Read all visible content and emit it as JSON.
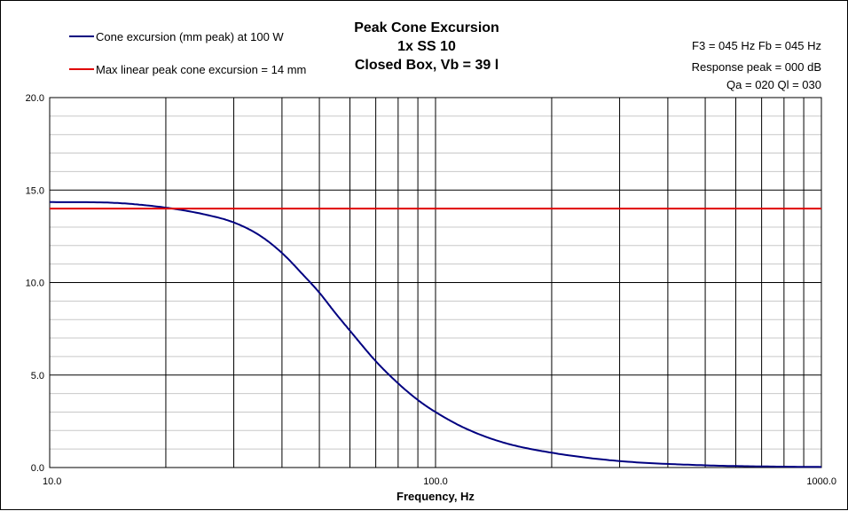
{
  "chart_data": {
    "type": "line",
    "title_lines": [
      "Peak Cone Excursion",
      "1x SS 10",
      "Closed Box, Vb = 39 l"
    ],
    "info_lines": [
      "F3 = 045 Hz  Fb = 045 Hz",
      "Response peak = 000 dB",
      "Qa = 020  Ql = 030"
    ],
    "xlabel": "Frequency, Hz",
    "ylabel": "",
    "x_scale": "log",
    "xlim": [
      10,
      1000
    ],
    "ylim": [
      0,
      20
    ],
    "x_tick_labels": [
      "10.0",
      "100.0",
      "1000.0"
    ],
    "y_tick_labels": [
      "0.0",
      "5.0",
      "10.0",
      "15.0",
      "20.0"
    ],
    "grid": true,
    "legend_position": "top-left",
    "series": [
      {
        "name": "Cone excursion (mm peak) at 100 W",
        "color": "#000080",
        "x": [
          10,
          15,
          20,
          25,
          30,
          35,
          40,
          45,
          50,
          55,
          60,
          70,
          80,
          90,
          100,
          120,
          150,
          200,
          300,
          500,
          700,
          1000
        ],
        "y": [
          14.35,
          14.3,
          14.05,
          13.7,
          13.25,
          12.55,
          11.6,
          10.5,
          9.45,
          8.35,
          7.4,
          5.75,
          4.55,
          3.65,
          3.0,
          2.1,
          1.35,
          0.8,
          0.35,
          0.12,
          0.06,
          0.03
        ]
      },
      {
        "name": "Max linear peak cone excursion = 14 mm",
        "color": "#e00000",
        "x": [
          10,
          1000
        ],
        "y": [
          14,
          14
        ]
      }
    ]
  }
}
